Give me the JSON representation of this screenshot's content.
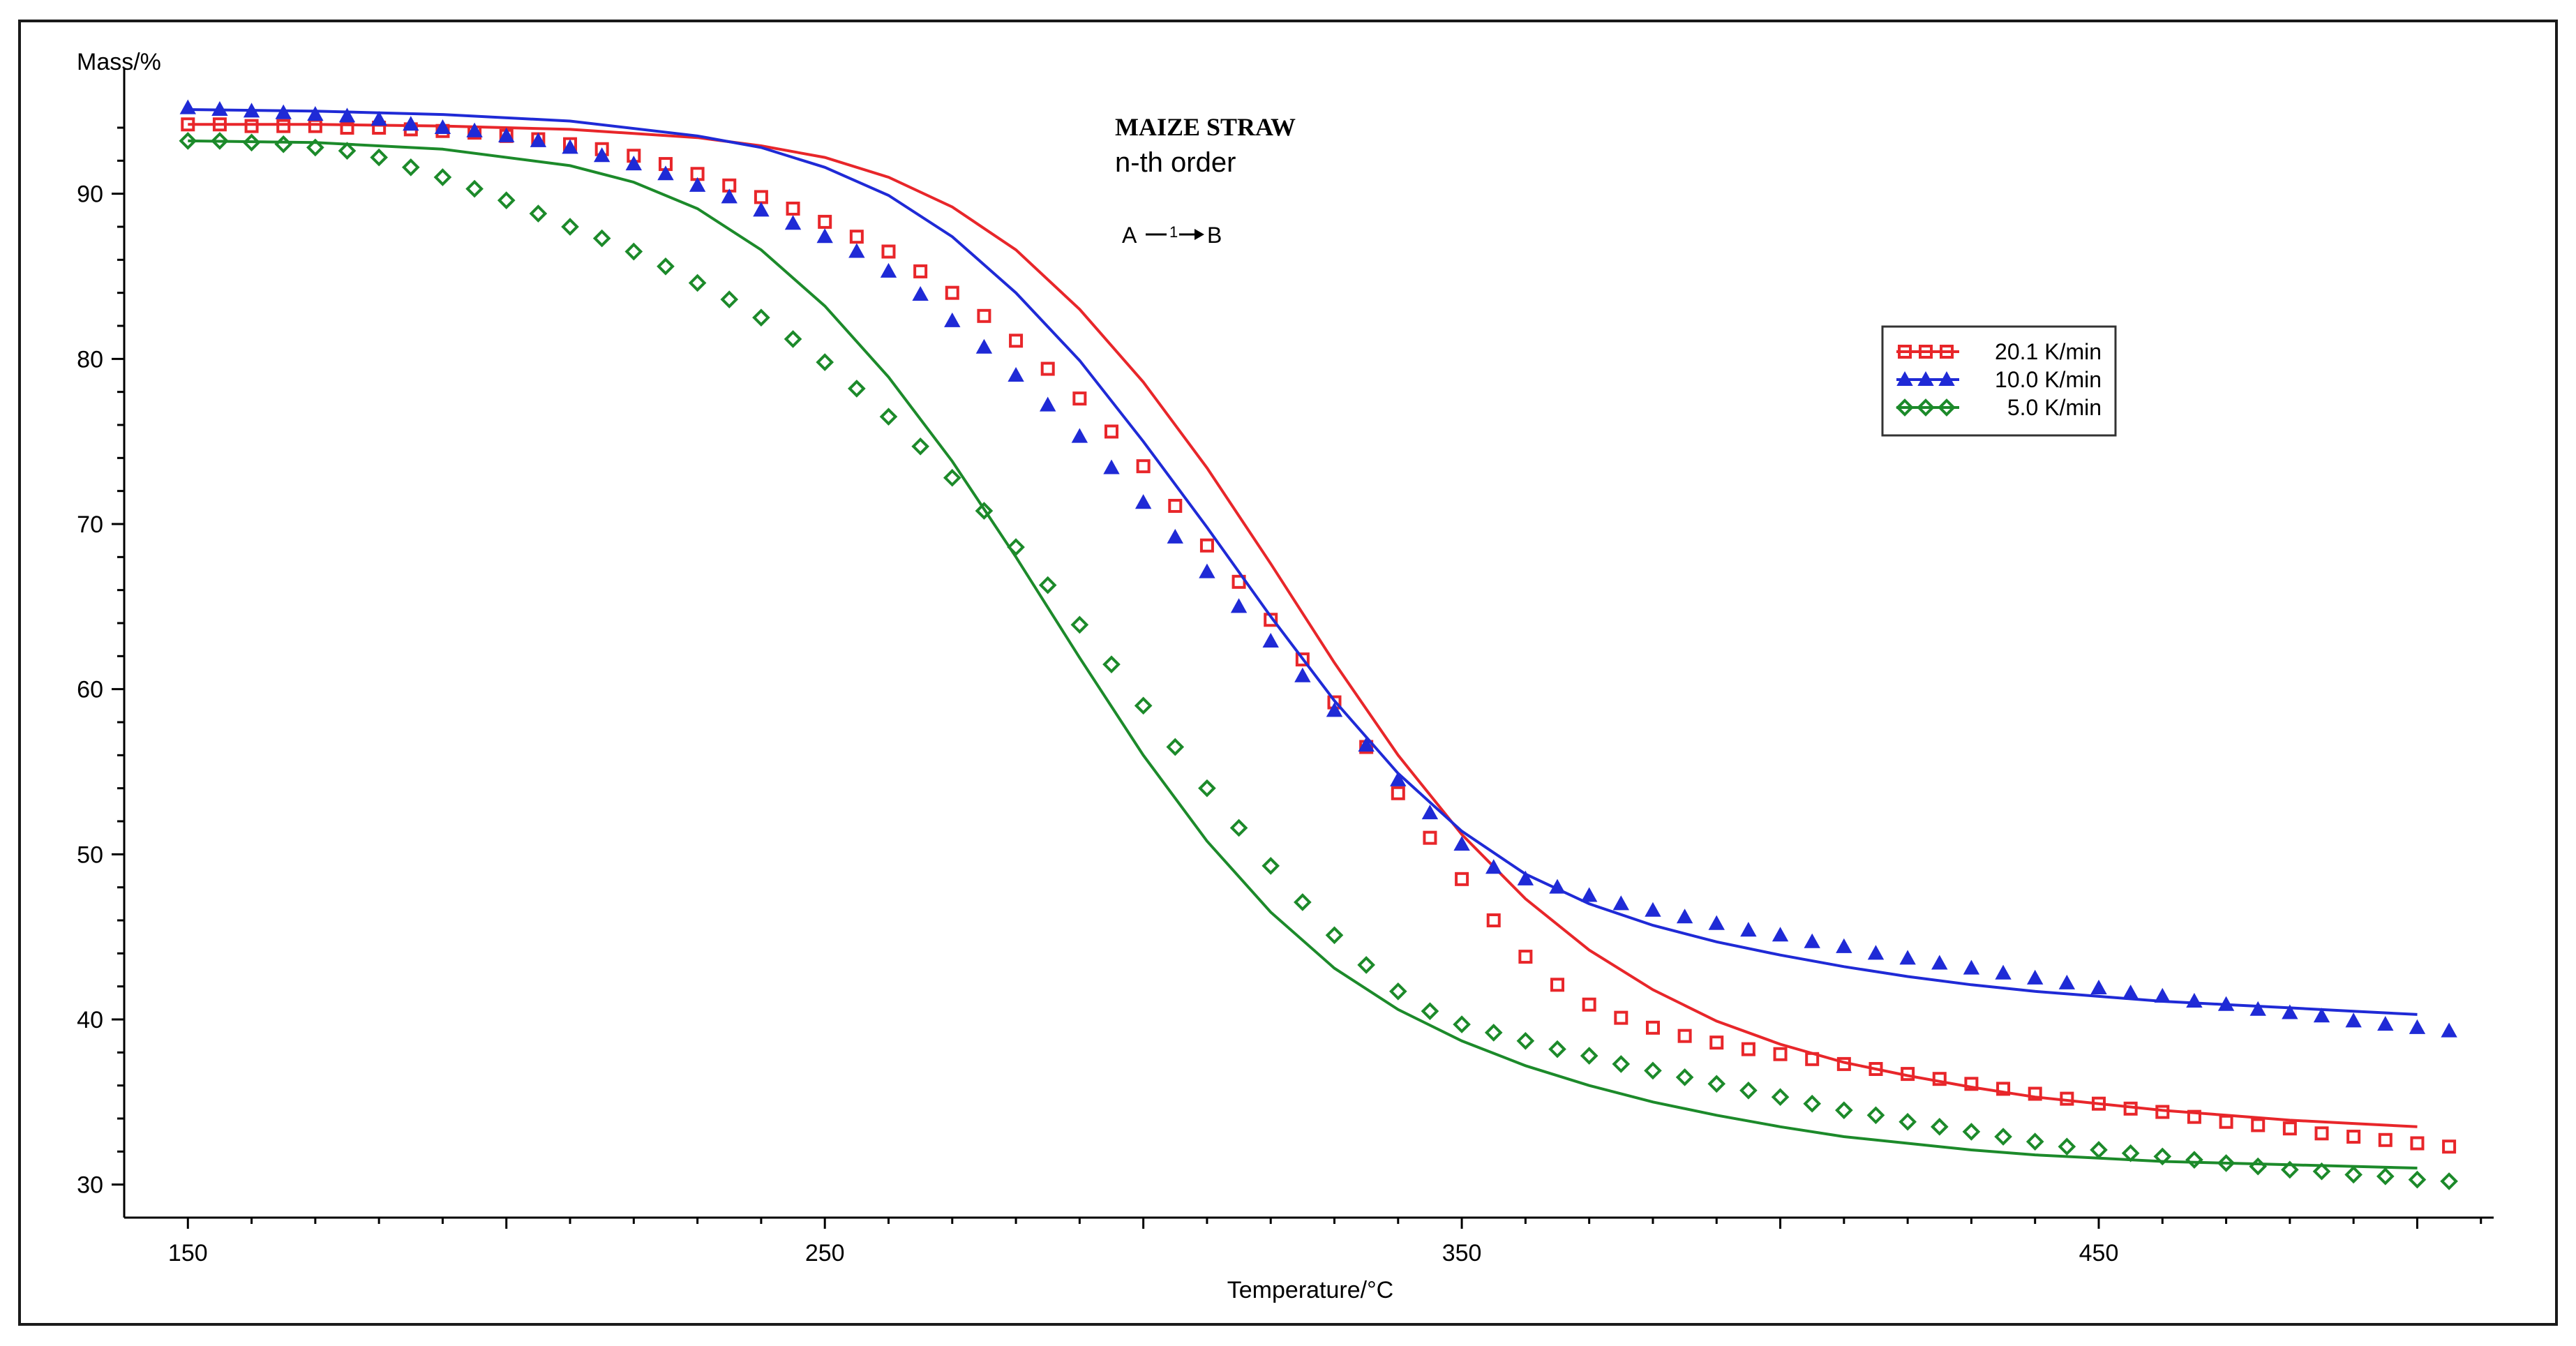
{
  "chart_data": {
    "type": "line",
    "title": "MAIZE STRAW",
    "subtitle": "n-th order",
    "reaction": {
      "from": "A",
      "step": "1",
      "to": "B"
    },
    "xlabel": "Temperature/°C",
    "ylabel": "Mass/%",
    "xlim": [
      140,
      512
    ],
    "ylim": [
      28,
      97
    ],
    "xticks": [
      150,
      250,
      350,
      450
    ],
    "yticks": [
      30,
      40,
      50,
      60,
      70,
      80,
      90
    ],
    "legend_position": "upper-right",
    "series": [
      {
        "name": "20.1 K/min",
        "color": "#e8262a",
        "marker": "square",
        "measured": {
          "x": [
            150,
            155,
            160,
            165,
            170,
            175,
            180,
            185,
            190,
            195,
            200,
            205,
            210,
            215,
            220,
            225,
            230,
            235,
            240,
            245,
            250,
            255,
            260,
            265,
            270,
            275,
            280,
            285,
            290,
            295,
            300,
            305,
            310,
            315,
            320,
            325,
            330,
            335,
            340,
            345,
            350,
            355,
            360,
            365,
            370,
            375,
            380,
            385,
            390,
            395,
            400,
            405,
            410,
            415,
            420,
            425,
            430,
            435,
            440,
            445,
            450,
            455,
            460,
            465,
            470,
            475,
            480,
            485,
            490,
            495,
            500,
            505
          ],
          "y": [
            94.2,
            94.2,
            94.1,
            94.1,
            94.1,
            94.0,
            94.0,
            93.9,
            93.8,
            93.7,
            93.5,
            93.3,
            93.0,
            92.7,
            92.3,
            91.8,
            91.2,
            90.5,
            89.8,
            89.1,
            88.3,
            87.4,
            86.5,
            85.3,
            84.0,
            82.6,
            81.1,
            79.4,
            77.6,
            75.6,
            73.5,
            71.1,
            68.7,
            66.5,
            64.2,
            61.8,
            59.2,
            56.5,
            53.7,
            51.0,
            48.5,
            46.0,
            43.8,
            42.1,
            40.9,
            40.1,
            39.5,
            39.0,
            38.6,
            38.2,
            37.9,
            37.6,
            37.3,
            37.0,
            36.7,
            36.4,
            36.1,
            35.8,
            35.5,
            35.2,
            34.9,
            34.6,
            34.4,
            34.1,
            33.8,
            33.6,
            33.4,
            33.1,
            32.9,
            32.7,
            32.5,
            32.3
          ]
        },
        "model": {
          "x": [
            150,
            170,
            190,
            210,
            230,
            240,
            250,
            260,
            270,
            280,
            290,
            300,
            310,
            320,
            330,
            340,
            350,
            360,
            370,
            380,
            390,
            400,
            410,
            420,
            430,
            440,
            450,
            460,
            470,
            480,
            490,
            500
          ],
          "y": [
            94.2,
            94.2,
            94.1,
            93.9,
            93.4,
            92.9,
            92.2,
            91.0,
            89.2,
            86.6,
            83.0,
            78.6,
            73.4,
            67.6,
            61.6,
            56.0,
            51.2,
            47.3,
            44.2,
            41.8,
            39.9,
            38.5,
            37.4,
            36.6,
            35.9,
            35.3,
            34.9,
            34.5,
            34.2,
            33.9,
            33.7,
            33.5
          ]
        }
      },
      {
        "name": "10.0 K/min",
        "color": "#1f2ad6",
        "marker": "triangle",
        "measured": {
          "x": [
            150,
            155,
            160,
            165,
            170,
            175,
            180,
            185,
            190,
            195,
            200,
            205,
            210,
            215,
            220,
            225,
            230,
            235,
            240,
            245,
            250,
            255,
            260,
            265,
            270,
            275,
            280,
            285,
            290,
            295,
            300,
            305,
            310,
            315,
            320,
            325,
            330,
            335,
            340,
            345,
            350,
            355,
            360,
            365,
            370,
            375,
            380,
            385,
            390,
            395,
            400,
            405,
            410,
            415,
            420,
            425,
            430,
            435,
            440,
            445,
            450,
            455,
            460,
            465,
            470,
            475,
            480,
            485,
            490,
            495,
            500,
            505
          ],
          "y": [
            95.2,
            95.1,
            95.0,
            94.9,
            94.8,
            94.7,
            94.5,
            94.2,
            94.0,
            93.8,
            93.5,
            93.2,
            92.8,
            92.3,
            91.8,
            91.2,
            90.5,
            89.8,
            89.0,
            88.2,
            87.4,
            86.5,
            85.3,
            83.9,
            82.3,
            80.7,
            79.0,
            77.2,
            75.3,
            73.4,
            71.3,
            69.2,
            67.1,
            65.0,
            62.9,
            60.8,
            58.7,
            56.6,
            54.5,
            52.5,
            50.6,
            49.2,
            48.5,
            48.0,
            47.5,
            47.0,
            46.6,
            46.2,
            45.8,
            45.4,
            45.1,
            44.7,
            44.4,
            44.0,
            43.7,
            43.4,
            43.1,
            42.8,
            42.5,
            42.2,
            41.9,
            41.6,
            41.4,
            41.1,
            40.9,
            40.6,
            40.4,
            40.2,
            39.9,
            39.7,
            39.5,
            39.3
          ]
        },
        "model": {
          "x": [
            150,
            170,
            190,
            210,
            230,
            240,
            250,
            260,
            270,
            280,
            290,
            300,
            310,
            320,
            330,
            340,
            350,
            360,
            370,
            380,
            390,
            400,
            410,
            420,
            430,
            440,
            450,
            460,
            470,
            480,
            490,
            500
          ],
          "y": [
            95.1,
            95.0,
            94.8,
            94.4,
            93.5,
            92.8,
            91.6,
            89.9,
            87.4,
            84.0,
            79.9,
            75.0,
            69.8,
            64.4,
            59.3,
            54.9,
            51.4,
            48.8,
            47.0,
            45.7,
            44.7,
            43.9,
            43.2,
            42.6,
            42.1,
            41.7,
            41.4,
            41.1,
            40.9,
            40.7,
            40.5,
            40.3
          ]
        }
      },
      {
        "name": "5.0 K/min",
        "color": "#1c8a2a",
        "marker": "diamond",
        "measured": {
          "x": [
            150,
            155,
            160,
            165,
            170,
            175,
            180,
            185,
            190,
            195,
            200,
            205,
            210,
            215,
            220,
            225,
            230,
            235,
            240,
            245,
            250,
            255,
            260,
            265,
            270,
            275,
            280,
            285,
            290,
            295,
            300,
            305,
            310,
            315,
            320,
            325,
            330,
            335,
            340,
            345,
            350,
            355,
            360,
            365,
            370,
            375,
            380,
            385,
            390,
            395,
            400,
            405,
            410,
            415,
            420,
            425,
            430,
            435,
            440,
            445,
            450,
            455,
            460,
            465,
            470,
            475,
            480,
            485,
            490,
            495,
            500,
            505
          ],
          "y": [
            93.2,
            93.2,
            93.1,
            93.0,
            92.8,
            92.6,
            92.2,
            91.6,
            91.0,
            90.3,
            89.6,
            88.8,
            88.0,
            87.3,
            86.5,
            85.6,
            84.6,
            83.6,
            82.5,
            81.2,
            79.8,
            78.2,
            76.5,
            74.7,
            72.8,
            70.8,
            68.6,
            66.3,
            63.9,
            61.5,
            59.0,
            56.5,
            54.0,
            51.6,
            49.3,
            47.1,
            45.1,
            43.3,
            41.7,
            40.5,
            39.7,
            39.2,
            38.7,
            38.2,
            37.8,
            37.3,
            36.9,
            36.5,
            36.1,
            35.7,
            35.3,
            34.9,
            34.5,
            34.2,
            33.8,
            33.5,
            33.2,
            32.9,
            32.6,
            32.3,
            32.1,
            31.9,
            31.7,
            31.5,
            31.3,
            31.1,
            30.9,
            30.8,
            30.6,
            30.5,
            30.3,
            30.2
          ]
        },
        "model": {
          "x": [
            150,
            170,
            190,
            210,
            220,
            230,
            240,
            250,
            260,
            270,
            280,
            290,
            300,
            310,
            320,
            330,
            340,
            350,
            360,
            370,
            380,
            390,
            400,
            410,
            420,
            430,
            440,
            450,
            460,
            470,
            480,
            490,
            500
          ],
          "y": [
            93.2,
            93.1,
            92.7,
            91.7,
            90.7,
            89.1,
            86.6,
            83.2,
            78.9,
            73.8,
            68.0,
            61.9,
            56.0,
            50.8,
            46.5,
            43.1,
            40.6,
            38.7,
            37.2,
            36.0,
            35.0,
            34.2,
            33.5,
            32.9,
            32.5,
            32.1,
            31.8,
            31.6,
            31.4,
            31.3,
            31.2,
            31.1,
            31.0
          ]
        }
      }
    ]
  }
}
